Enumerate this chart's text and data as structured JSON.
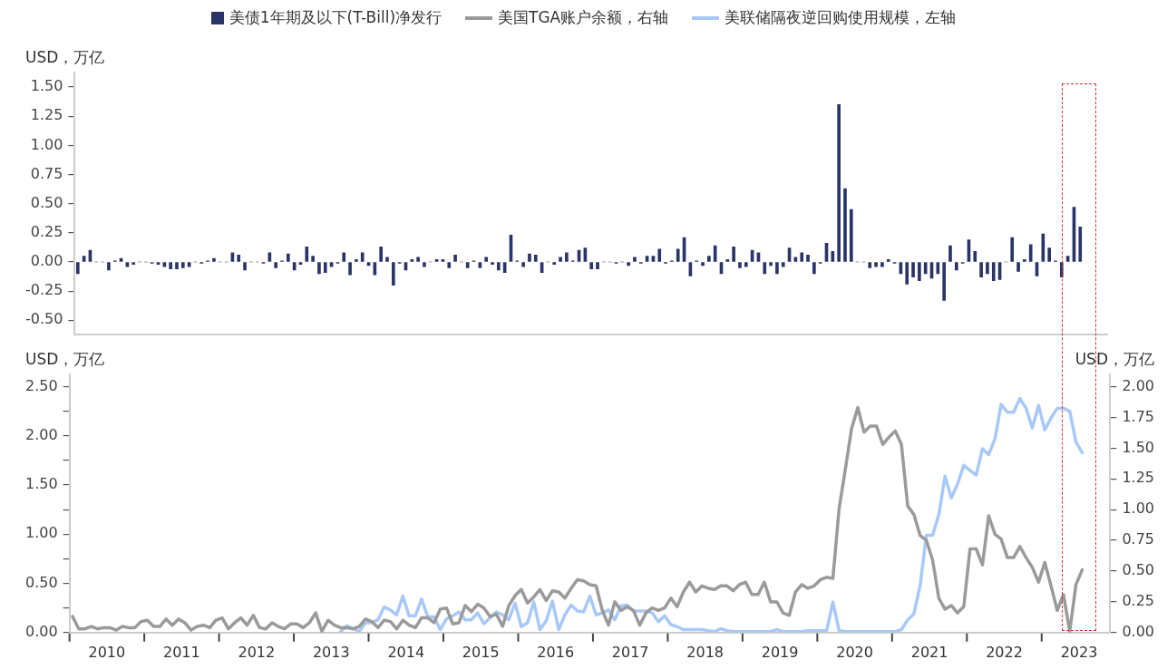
{
  "chart_data": [
    {
      "type": "bar",
      "ylabel": "USD，万亿",
      "legend": "top",
      "tick_labels": "y",
      "x": [
        "2010-01",
        "2010-02",
        "2010-03",
        "2010-04",
        "2010-05",
        "2010-06",
        "2010-07",
        "2010-08",
        "2010-09",
        "2010-10",
        "2010-11",
        "2010-12",
        "2011-01",
        "2011-02",
        "2011-03",
        "2011-04",
        "2011-05",
        "2011-06",
        "2011-07",
        "2011-08",
        "2011-09",
        "2011-10",
        "2011-11",
        "2011-12",
        "2012-01",
        "2012-02",
        "2012-03",
        "2012-04",
        "2012-05",
        "2012-06",
        "2012-07",
        "2012-08",
        "2012-09",
        "2012-10",
        "2012-11",
        "2012-12",
        "2013-01",
        "2013-02",
        "2013-03",
        "2013-04",
        "2013-05",
        "2013-06",
        "2013-07",
        "2013-08",
        "2013-09",
        "2013-10",
        "2013-11",
        "2013-12",
        "2014-01",
        "2014-02",
        "2014-03",
        "2014-04",
        "2014-05",
        "2014-06",
        "2014-07",
        "2014-08",
        "2014-09",
        "2014-10",
        "2014-11",
        "2014-12",
        "2015-01",
        "2015-02",
        "2015-03",
        "2015-04",
        "2015-05",
        "2015-06",
        "2015-07",
        "2015-08",
        "2015-09",
        "2015-10",
        "2015-11",
        "2015-12",
        "2016-01",
        "2016-02",
        "2016-03",
        "2016-04",
        "2016-05",
        "2016-06",
        "2016-07",
        "2016-08",
        "2016-09",
        "2016-10",
        "2016-11",
        "2016-12",
        "2017-01",
        "2017-02",
        "2017-03",
        "2017-04",
        "2017-05",
        "2017-06",
        "2017-07",
        "2017-08",
        "2017-09",
        "2017-10",
        "2017-11",
        "2017-12",
        "2018-01",
        "2018-02",
        "2018-03",
        "2018-04",
        "2018-05",
        "2018-06",
        "2018-07",
        "2018-08",
        "2018-09",
        "2018-10",
        "2018-11",
        "2018-12",
        "2019-01",
        "2019-02",
        "2019-03",
        "2019-04",
        "2019-05",
        "2019-06",
        "2019-07",
        "2019-08",
        "2019-09",
        "2019-10",
        "2019-11",
        "2019-12",
        "2020-01",
        "2020-02",
        "2020-03",
        "2020-04",
        "2020-05",
        "2020-06",
        "2020-07",
        "2020-08",
        "2020-09",
        "2020-10",
        "2020-11",
        "2020-12",
        "2021-01",
        "2021-02",
        "2021-03",
        "2021-04",
        "2021-05",
        "2021-06",
        "2021-07",
        "2021-08",
        "2021-09",
        "2021-10",
        "2021-11",
        "2021-12",
        "2022-01",
        "2022-02",
        "2022-03",
        "2022-04",
        "2022-05",
        "2022-06",
        "2022-07",
        "2022-08",
        "2022-09",
        "2022-10",
        "2022-11",
        "2022-12",
        "2023-01",
        "2023-02",
        "2023-03",
        "2023-04",
        "2023-05",
        "2023-06",
        "2023-07"
      ],
      "xlim": [
        "2010-01-01",
        "2023-12-01"
      ],
      "ylim": [
        -0.625,
        1.625
      ],
      "yticks": [
        {
          "value": -0.5,
          "label": "-0.50"
        },
        {
          "value": -0.25,
          "label": "-0.25"
        },
        {
          "value": 0,
          "label": "0.00"
        },
        {
          "value": 0.25,
          "label": "0.25"
        },
        {
          "value": 0.5,
          "label": "0.50"
        },
        {
          "value": 0.75,
          "label": "0.75"
        },
        {
          "value": 1,
          "label": "1.00"
        },
        {
          "value": 1.25,
          "label": "1.25"
        },
        {
          "value": 1.5,
          "label": "1.50"
        }
      ],
      "series": [
        {
          "name": "美债1年期及以下(T-Bill)净发行",
          "color": "#2b3467",
          "values": [
            -0.1,
            0.05,
            0.1,
            0.0,
            0.0,
            -0.07,
            0.01,
            0.03,
            -0.04,
            -0.02,
            0.0,
            0.0,
            -0.01,
            -0.02,
            -0.04,
            -0.06,
            -0.06,
            -0.05,
            -0.04,
            0.0,
            -0.01,
            0.01,
            0.03,
            0.0,
            0.0,
            0.08,
            0.06,
            -0.07,
            0.0,
            0.0,
            -0.01,
            0.08,
            -0.05,
            0.01,
            0.07,
            -0.07,
            -0.02,
            0.13,
            0.05,
            -0.1,
            -0.09,
            -0.04,
            -0.01,
            0.08,
            -0.11,
            0.02,
            0.08,
            -0.03,
            -0.11,
            0.13,
            0.04,
            -0.2,
            -0.01,
            -0.07,
            0.02,
            0.04,
            -0.04,
            0.0,
            0.02,
            0.02,
            -0.05,
            0.06,
            0.0,
            -0.05,
            0.01,
            -0.05,
            0.04,
            -0.02,
            -0.07,
            -0.09,
            0.23,
            0.01,
            -0.04,
            0.07,
            0.06,
            -0.09,
            0.0,
            -0.02,
            0.04,
            0.08,
            0.01,
            0.1,
            0.12,
            -0.06,
            -0.06,
            0.0,
            0.0,
            -0.01,
            0.0,
            -0.03,
            0.04,
            -0.01,
            0.05,
            0.05,
            0.11,
            -0.01,
            0.01,
            0.11,
            0.21,
            -0.12,
            0.01,
            -0.03,
            0.05,
            0.14,
            -0.1,
            0.02,
            0.13,
            -0.05,
            -0.04,
            0.1,
            0.08,
            -0.1,
            -0.03,
            -0.1,
            -0.04,
            0.12,
            0.04,
            0.08,
            0.06,
            -0.1,
            -0.01,
            0.16,
            0.09,
            1.35,
            0.63,
            0.45,
            0.0,
            0.0,
            -0.05,
            -0.04,
            -0.04,
            0.02,
            -0.01,
            -0.1,
            -0.19,
            -0.13,
            -0.16,
            -0.1,
            -0.14,
            -0.1,
            -0.33,
            0.14,
            -0.07,
            -0.01,
            0.19,
            0.09,
            -0.13,
            -0.1,
            -0.16,
            -0.15,
            0.0,
            0.21,
            -0.08,
            0.02,
            0.15,
            -0.12,
            0.24,
            0.12,
            0.01,
            -0.13,
            0.05,
            0.47,
            0.3
          ]
        }
      ]
    },
    {
      "type": "line",
      "ylabel": "USD，万亿",
      "y2label": "USD，万亿",
      "legend": "top",
      "x": [
        "2010-01",
        "2010-02",
        "2010-03",
        "2010-04",
        "2010-05",
        "2010-06",
        "2010-07",
        "2010-08",
        "2010-09",
        "2010-10",
        "2010-11",
        "2010-12",
        "2011-01",
        "2011-02",
        "2011-03",
        "2011-04",
        "2011-05",
        "2011-06",
        "2011-07",
        "2011-08",
        "2011-09",
        "2011-10",
        "2011-11",
        "2011-12",
        "2012-01",
        "2012-02",
        "2012-03",
        "2012-04",
        "2012-05",
        "2012-06",
        "2012-07",
        "2012-08",
        "2012-09",
        "2012-10",
        "2012-11",
        "2012-12",
        "2013-01",
        "2013-02",
        "2013-03",
        "2013-04",
        "2013-05",
        "2013-06",
        "2013-07",
        "2013-08",
        "2013-09",
        "2013-10",
        "2013-11",
        "2013-12",
        "2014-01",
        "2014-02",
        "2014-03",
        "2014-04",
        "2014-05",
        "2014-06",
        "2014-07",
        "2014-08",
        "2014-09",
        "2014-10",
        "2014-11",
        "2014-12",
        "2015-01",
        "2015-02",
        "2015-03",
        "2015-04",
        "2015-05",
        "2015-06",
        "2015-07",
        "2015-08",
        "2015-09",
        "2015-10",
        "2015-11",
        "2015-12",
        "2016-01",
        "2016-02",
        "2016-03",
        "2016-04",
        "2016-05",
        "2016-06",
        "2016-07",
        "2016-08",
        "2016-09",
        "2016-10",
        "2016-11",
        "2016-12",
        "2017-01",
        "2017-02",
        "2017-03",
        "2017-04",
        "2017-05",
        "2017-06",
        "2017-07",
        "2017-08",
        "2017-09",
        "2017-10",
        "2017-11",
        "2017-12",
        "2018-01",
        "2018-02",
        "2018-03",
        "2018-04",
        "2018-05",
        "2018-06",
        "2018-07",
        "2018-08",
        "2018-09",
        "2018-10",
        "2018-11",
        "2018-12",
        "2019-01",
        "2019-02",
        "2019-03",
        "2019-04",
        "2019-05",
        "2019-06",
        "2019-07",
        "2019-08",
        "2019-09",
        "2019-10",
        "2019-11",
        "2019-12",
        "2020-01",
        "2020-02",
        "2020-03",
        "2020-04",
        "2020-05",
        "2020-06",
        "2020-07",
        "2020-08",
        "2020-09",
        "2020-10",
        "2020-11",
        "2020-12",
        "2021-01",
        "2021-02",
        "2021-03",
        "2021-04",
        "2021-05",
        "2021-06",
        "2021-07",
        "2021-08",
        "2021-09",
        "2021-10",
        "2021-11",
        "2021-12",
        "2022-01",
        "2022-02",
        "2022-03",
        "2022-04",
        "2022-05",
        "2022-06",
        "2022-07",
        "2022-08",
        "2022-09",
        "2022-10",
        "2022-11",
        "2022-12",
        "2023-01",
        "2023-02",
        "2023-03",
        "2023-04",
        "2023-05",
        "2023-06",
        "2023-07"
      ],
      "xlim": [
        "2010-01-01",
        "2023-12-01"
      ],
      "xticks": [
        {
          "value": "2010-01-01",
          "label": null
        },
        {
          "value": "2010-07-01",
          "label": "2010"
        },
        {
          "value": "2011-01-01",
          "label": null
        },
        {
          "value": "2011-07-01",
          "label": "2011"
        },
        {
          "value": "2012-01-01",
          "label": null
        },
        {
          "value": "2012-07-01",
          "label": "2012"
        },
        {
          "value": "2013-01-01",
          "label": null
        },
        {
          "value": "2013-07-01",
          "label": "2013"
        },
        {
          "value": "2014-01-01",
          "label": null
        },
        {
          "value": "2014-07-01",
          "label": "2014"
        },
        {
          "value": "2015-01-01",
          "label": null
        },
        {
          "value": "2015-07-01",
          "label": "2015"
        },
        {
          "value": "2016-01-01",
          "label": null
        },
        {
          "value": "2016-07-01",
          "label": "2016"
        },
        {
          "value": "2017-01-01",
          "label": null
        },
        {
          "value": "2017-07-01",
          "label": "2017"
        },
        {
          "value": "2018-01-01",
          "label": null
        },
        {
          "value": "2018-07-01",
          "label": "2018"
        },
        {
          "value": "2019-01-01",
          "label": null
        },
        {
          "value": "2019-07-01",
          "label": "2019"
        },
        {
          "value": "2020-01-01",
          "label": null
        },
        {
          "value": "2020-07-01",
          "label": "2020"
        },
        {
          "value": "2021-01-01",
          "label": null
        },
        {
          "value": "2021-07-01",
          "label": "2021"
        },
        {
          "value": "2022-01-01",
          "label": null
        },
        {
          "value": "2022-07-01",
          "label": "2022"
        },
        {
          "value": "2023-01-01",
          "label": null
        },
        {
          "value": "2023-07-01",
          "label": "2023"
        }
      ],
      "ylim": [
        0,
        2.625
      ],
      "yticks": [
        {
          "value": 0,
          "label": "0.00"
        },
        {
          "value": 0.25,
          "label": null
        },
        {
          "value": 0.5,
          "label": "0.50"
        },
        {
          "value": 0.75,
          "label": null
        },
        {
          "value": 1,
          "label": "1.00"
        },
        {
          "value": 1.25,
          "label": null
        },
        {
          "value": 1.5,
          "label": "1.50"
        },
        {
          "value": 1.75,
          "label": null
        },
        {
          "value": 2,
          "label": "2.00"
        },
        {
          "value": 2.25,
          "label": null
        },
        {
          "value": 2.5,
          "label": "2.50"
        }
      ],
      "y2lim": [
        0,
        2.1
      ],
      "y2ticks": [
        {
          "value": 0,
          "label": "0.00"
        },
        {
          "value": 0.25,
          "label": "0.25"
        },
        {
          "value": 0.5,
          "label": "0.50"
        },
        {
          "value": 0.75,
          "label": "0.75"
        },
        {
          "value": 1,
          "label": "1.00"
        },
        {
          "value": 1.25,
          "label": "1.25"
        },
        {
          "value": 1.5,
          "label": "1.50"
        },
        {
          "value": 1.75,
          "label": "1.75"
        },
        {
          "value": 2,
          "label": "2.00"
        }
      ],
      "series": [
        {
          "name": "美国TGA账户余额，右轴",
          "color": "#9a9a9a",
          "axis": "y2",
          "values": [
            0.13,
            0.03,
            0.03,
            0.05,
            0.03,
            0.04,
            0.04,
            0.02,
            0.05,
            0.04,
            0.04,
            0.09,
            0.1,
            0.05,
            0.05,
            0.11,
            0.06,
            0.11,
            0.08,
            0.02,
            0.05,
            0.06,
            0.04,
            0.1,
            0.12,
            0.03,
            0.08,
            0.12,
            0.06,
            0.14,
            0.04,
            0.03,
            0.08,
            0.05,
            0.03,
            0.07,
            0.07,
            0.04,
            0.08,
            0.16,
            0.01,
            0.1,
            0.06,
            0.04,
            0.04,
            0.03,
            0.05,
            0.11,
            0.09,
            0.04,
            0.1,
            0.09,
            0.03,
            0.1,
            0.06,
            0.04,
            0.12,
            0.12,
            0.08,
            0.19,
            0.2,
            0.07,
            0.08,
            0.22,
            0.17,
            0.23,
            0.2,
            0.13,
            0.15,
            0.05,
            0.22,
            0.3,
            0.35,
            0.24,
            0.29,
            0.35,
            0.26,
            0.34,
            0.33,
            0.28,
            0.36,
            0.43,
            0.42,
            0.39,
            0.38,
            0.18,
            0.06,
            0.25,
            0.18,
            0.21,
            0.18,
            0.06,
            0.16,
            0.2,
            0.18,
            0.2,
            0.28,
            0.21,
            0.33,
            0.41,
            0.33,
            0.38,
            0.36,
            0.35,
            0.38,
            0.38,
            0.34,
            0.39,
            0.41,
            0.31,
            0.31,
            0.41,
            0.25,
            0.25,
            0.16,
            0.14,
            0.33,
            0.39,
            0.36,
            0.38,
            0.43,
            0.45,
            0.44,
            1.01,
            1.33,
            1.66,
            1.83,
            1.63,
            1.68,
            1.68,
            1.53,
            1.59,
            1.64,
            1.53,
            1.03,
            0.96,
            0.79,
            0.75,
            0.59,
            0.28,
            0.19,
            0.22,
            0.16,
            0.21,
            0.68,
            0.68,
            0.55,
            0.95,
            0.8,
            0.76,
            0.61,
            0.61,
            0.7,
            0.61,
            0.53,
            0.41,
            0.57,
            0.38,
            0.18,
            0.31,
            0.01,
            0.39,
            0.51
          ]
        },
        {
          "name": "美联储隔夜逆回购使用规模，左轴",
          "color": "#a8c9f7",
          "values": [
            null,
            null,
            null,
            null,
            null,
            null,
            null,
            null,
            null,
            null,
            null,
            null,
            null,
            null,
            null,
            null,
            null,
            null,
            null,
            null,
            null,
            null,
            null,
            null,
            null,
            null,
            null,
            null,
            null,
            null,
            null,
            null,
            null,
            null,
            null,
            null,
            null,
            null,
            null,
            null,
            null,
            null,
            null,
            0.01,
            0.07,
            0.04,
            0.01,
            0.1,
            0.1,
            0.13,
            0.26,
            0.23,
            0.18,
            0.37,
            0.17,
            0.17,
            0.34,
            0.16,
            0.16,
            0.03,
            0.14,
            0.17,
            0.21,
            0.13,
            0.13,
            0.2,
            0.09,
            0.15,
            0.21,
            0.18,
            0.13,
            0.3,
            0.06,
            0.1,
            0.31,
            0.03,
            0.12,
            0.32,
            0.03,
            0.18,
            0.28,
            0.22,
            0.21,
            0.37,
            0.18,
            0.2,
            0.23,
            0.13,
            0.27,
            0.28,
            0.22,
            0.22,
            0.22,
            0.2,
            0.11,
            0.17,
            0.08,
            0.06,
            0.03,
            0.03,
            0.03,
            0.03,
            0.02,
            0.01,
            0.04,
            0.02,
            0.01,
            0.01,
            0.01,
            0.01,
            0.01,
            0.01,
            0.01,
            0.03,
            0.01,
            0.01,
            0.01,
            0.01,
            0.02,
            0.02,
            0.02,
            0.02,
            0.31,
            0.02,
            0.01,
            0.01,
            0.01,
            0.01,
            0.01,
            0.01,
            0.01,
            0.01,
            0.01,
            0.03,
            0.13,
            0.19,
            0.48,
            0.99,
            0.99,
            1.2,
            1.59,
            1.37,
            1.51,
            1.7,
            1.65,
            1.6,
            1.87,
            1.81,
            1.97,
            2.32,
            2.24,
            2.24,
            2.38,
            2.28,
            2.08,
            2.31,
            2.06,
            2.18,
            2.28,
            2.28,
            2.25,
            1.94,
            1.83
          ]
        }
      ]
    }
  ]
}
